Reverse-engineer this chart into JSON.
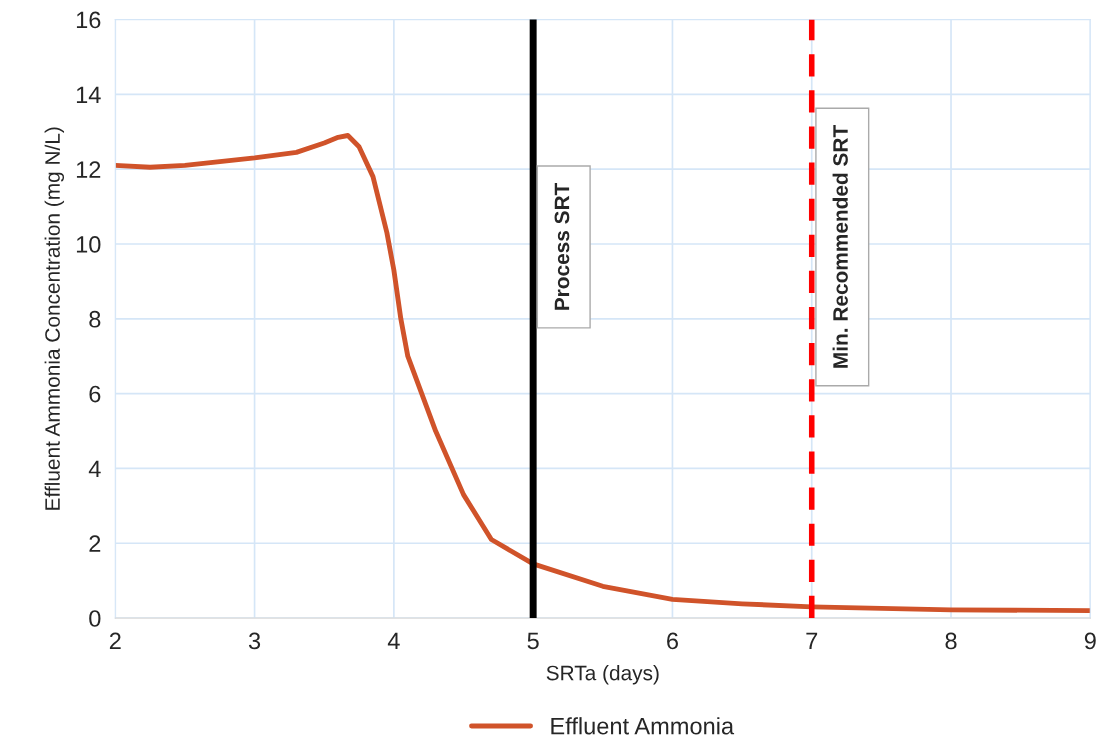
{
  "chart_data": {
    "type": "line",
    "xlabel": "SRTa (days)",
    "ylabel": "Effluent Ammonia Concentration (mg N/L)",
    "series": [
      {
        "name": "Effluent Ammonia",
        "color": "#d0532a",
        "x": [
          2,
          2.25,
          2.5,
          2.75,
          3.0,
          3.3,
          3.5,
          3.6,
          3.67,
          3.75,
          3.85,
          3.95,
          4.0,
          4.05,
          4.1,
          4.2,
          4.3,
          4.5,
          4.7,
          5.0,
          5.5,
          6.0,
          6.5,
          7.0,
          8.0,
          9.0
        ],
        "values": [
          12.1,
          12.05,
          12.1,
          12.2,
          12.3,
          12.45,
          12.7,
          12.85,
          12.9,
          12.6,
          11.8,
          10.3,
          9.3,
          8.0,
          7.0,
          6.0,
          5.0,
          3.3,
          2.1,
          1.45,
          0.85,
          0.5,
          0.38,
          0.3,
          0.22,
          0.2
        ]
      }
    ],
    "ref_lines": [
      {
        "axis": "x",
        "value": 5,
        "label": "Process SRT",
        "color": "#000000",
        "line_style": "solid"
      },
      {
        "axis": "x",
        "value": 7,
        "label": "Min. Recommended SRT",
        "color": "#ff0000",
        "line_style": "dashed"
      }
    ],
    "xlim": [
      2,
      9
    ],
    "xticks": [
      2,
      3,
      4,
      5,
      6,
      7,
      8,
      9
    ],
    "ylim": [
      0,
      16
    ],
    "yticks": [
      0,
      2,
      4,
      6,
      8,
      10,
      12,
      14,
      16
    ],
    "grid": true,
    "legend": "bottom",
    "line_style": "solid",
    "marker": "none"
  }
}
